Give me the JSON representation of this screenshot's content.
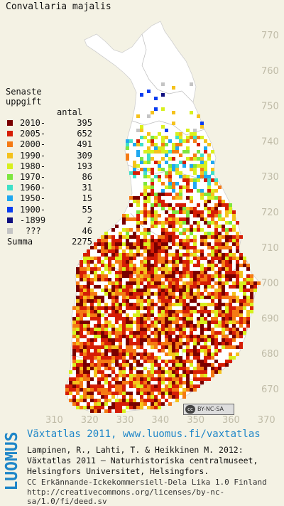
{
  "title": "Convallaria majalis",
  "legend": {
    "heading_1": "Senaste",
    "heading_2": "uppgift",
    "count_header": "antal",
    "rows": [
      {
        "label": "2010-",
        "count": "395",
        "color": "#7a0000"
      },
      {
        "label": "2005-",
        "count": "652",
        "color": "#d61e06"
      },
      {
        "label": "2000-",
        "count": "491",
        "color": "#f57a14"
      },
      {
        "label": "1990-",
        "count": "309",
        "color": "#f5c21c"
      },
      {
        "label": "1980-",
        "count": "193",
        "color": "#d8f01e"
      },
      {
        "label": "1970-",
        "count": "86",
        "color": "#7ee63e"
      },
      {
        "label": "1960-",
        "count": "31",
        "color": "#3fe0c8"
      },
      {
        "label": "1950-",
        "count": "15",
        "color": "#20a8f0"
      },
      {
        "label": "1900-",
        "count": "55",
        "color": "#0a3cf0"
      },
      {
        "label": "-1899",
        "count": "2",
        "color": "#101080"
      },
      {
        "label": "???",
        "count": "46",
        "color": "#c4c4c4"
      }
    ],
    "sum_label": "Summa",
    "sum_count": "2275"
  },
  "axes": {
    "northing_ticks": [
      "770",
      "760",
      "750",
      "740",
      "730",
      "720",
      "710",
      "700",
      "690",
      "680",
      "670"
    ],
    "easting_ticks": [
      "310",
      "320",
      "330",
      "340",
      "350",
      "360",
      "370"
    ]
  },
  "license_badge": "BY-NC-SA",
  "license_badge_mark": "cc",
  "logo_text": "LUOMUS",
  "footer": {
    "atlas_link": "Växtatlas 2011, www.luomus.fi/vaxtatlas",
    "citation_1": "Lampinen, R., Lahti, T. & Heikkinen M. 2012:",
    "citation_2": "Växtatlas 2011 – Naturhistoriska centralmuseet,",
    "citation_3": "Helsingfors Universitet, Helsingfors.",
    "license_1": "CC Erkännande-Ickekommersiell-Dela Lika 1.0 Finland",
    "license_2": "http://creativecommons.org/licenses/by-nc-sa/1.0/fi/deed.sv"
  },
  "colors": {
    "background": "#f4f2e4",
    "land": "#ffffff",
    "border_line": "#b8b8b8",
    "grid_label": "#c0bca8",
    "brand_blue": "#1e86c8"
  }
}
